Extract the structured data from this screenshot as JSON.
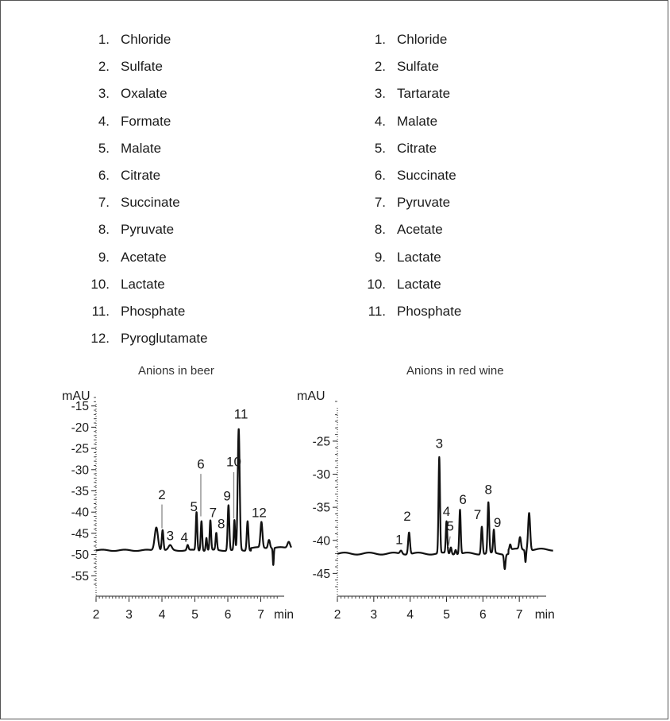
{
  "legend_beer": [
    {
      "num": "1.",
      "name": "Chloride"
    },
    {
      "num": "2.",
      "name": "Sulfate"
    },
    {
      "num": "3.",
      "name": "Oxalate"
    },
    {
      "num": "4.",
      "name": "Formate"
    },
    {
      "num": "5.",
      "name": "Malate"
    },
    {
      "num": "6.",
      "name": "Citrate"
    },
    {
      "num": "7.",
      "name": "Succinate"
    },
    {
      "num": "8.",
      "name": "Pyruvate"
    },
    {
      "num": "9.",
      "name": "Acetate"
    },
    {
      "num": "10.",
      "name": "Lactate"
    },
    {
      "num": "11.",
      "name": "Phosphate"
    },
    {
      "num": "12.",
      "name": "Pyroglutamate"
    }
  ],
  "legend_wine": [
    {
      "num": "1.",
      "name": "Chloride"
    },
    {
      "num": "2.",
      "name": "Sulfate"
    },
    {
      "num": "3.",
      "name": "Tartarate"
    },
    {
      "num": "4.",
      "name": "Malate"
    },
    {
      "num": "5.",
      "name": "Citrate"
    },
    {
      "num": "6.",
      "name": "Succinate"
    },
    {
      "num": "7.",
      "name": "Pyruvate"
    },
    {
      "num": "8.",
      "name": "Acetate"
    },
    {
      "num": "9.",
      "name": "Lactate"
    },
    {
      "num": "10.",
      "name": "Lactate"
    },
    {
      "num": "11.",
      "name": "Phosphate"
    }
  ],
  "chart_data": [
    {
      "type": "line",
      "title": "Anions in beer",
      "ylabel": "mAU",
      "xlabel": "min",
      "xlim": [
        2,
        8
      ],
      "ylim": [
        -57,
        -13
      ],
      "xticks": [
        2,
        3,
        4,
        5,
        6,
        7
      ],
      "yticks": [
        -55,
        -50,
        -45,
        -40,
        -35,
        -30,
        -25,
        -20,
        -15
      ],
      "baseline": -49,
      "peaks": [
        {
          "x": 3.83,
          "y": -43.5,
          "w": 0.05
        },
        {
          "x": 4.02,
          "y": -44.2,
          "w": 0.025
        },
        {
          "x": 4.25,
          "y": -47.9,
          "w": 0.05
        },
        {
          "x": 4.78,
          "y": -47.8,
          "w": 0.025
        },
        {
          "x": 5.05,
          "y": -40.0,
          "w": 0.022
        },
        {
          "x": 5.2,
          "y": -42.0,
          "w": 0.022
        },
        {
          "x": 5.35,
          "y": -46.0,
          "w": 0.02
        },
        {
          "x": 5.47,
          "y": -42.0,
          "w": 0.022
        },
        {
          "x": 5.65,
          "y": -45.0,
          "w": 0.022
        },
        {
          "x": 6.02,
          "y": -38.3,
          "w": 0.025
        },
        {
          "x": 6.2,
          "y": -42.0,
          "w": 0.02
        },
        {
          "x": 6.33,
          "y": -20.5,
          "w": 0.03
        },
        {
          "x": 6.6,
          "y": -42.0,
          "w": 0.025
        },
        {
          "x": 7.02,
          "y": -43.0,
          "w": 0.03
        },
        {
          "x": 7.25,
          "y": -47.0,
          "w": 0.03
        },
        {
          "x": 7.38,
          "y": -53.0,
          "w": 0.015
        },
        {
          "x": 7.85,
          "y": -47.5,
          "w": 0.04
        }
      ],
      "peak_labels": [
        {
          "label": "2",
          "x": 4.0,
          "y": -37.0,
          "leader": [
            [
              4.0,
              -38.2
            ],
            [
              4.0,
              -43.8
            ]
          ]
        },
        {
          "label": "3",
          "x": 4.25,
          "y": -46.6
        },
        {
          "label": "4",
          "x": 4.68,
          "y": -47.0
        },
        {
          "label": "5",
          "x": 4.97,
          "y": -39.8
        },
        {
          "label": "6",
          "x": 5.18,
          "y": -29.8,
          "leader": [
            [
              5.18,
              -31.0
            ],
            [
              5.18,
              -41.0
            ]
          ]
        },
        {
          "label": "7",
          "x": 5.55,
          "y": -41.2
        },
        {
          "label": "8",
          "x": 5.8,
          "y": -43.8
        },
        {
          "label": "9",
          "x": 5.98,
          "y": -37.2
        },
        {
          "label": "10",
          "x": 6.18,
          "y": -29.2,
          "leader": [
            [
              6.18,
              -30.6
            ],
            [
              6.18,
              -41.5
            ]
          ]
        },
        {
          "label": "11",
          "x": 6.4,
          "y": -18.0
        },
        {
          "label": "12",
          "x": 6.95,
          "y": -41.2
        }
      ]
    },
    {
      "type": "line",
      "title": "Anions in red wine",
      "ylabel": "mAU",
      "xlabel": "min",
      "xlim": [
        2,
        8
      ],
      "ylim": [
        -47,
        -19
      ],
      "xticks": [
        2,
        3,
        4,
        5,
        6,
        7
      ],
      "yticks": [
        -45,
        -40,
        -35,
        -30,
        -25
      ],
      "baseline": -42,
      "peaks": [
        {
          "x": 3.75,
          "y": -41.5,
          "w": 0.03
        },
        {
          "x": 3.97,
          "y": -38.7,
          "w": 0.025
        },
        {
          "x": 4.8,
          "y": -27.5,
          "w": 0.02
        },
        {
          "x": 5.0,
          "y": -37.2,
          "w": 0.02
        },
        {
          "x": 5.12,
          "y": -41.0,
          "w": 0.02
        },
        {
          "x": 5.25,
          "y": -41.3,
          "w": 0.02
        },
        {
          "x": 5.37,
          "y": -35.3,
          "w": 0.02
        },
        {
          "x": 5.97,
          "y": -37.8,
          "w": 0.022
        },
        {
          "x": 6.15,
          "y": -34.3,
          "w": 0.022
        },
        {
          "x": 6.3,
          "y": -38.5,
          "w": 0.02
        },
        {
          "x": 6.6,
          "y": -44.2,
          "w": 0.02
        },
        {
          "x": 6.75,
          "y": -41.2,
          "w": 0.02
        },
        {
          "x": 7.02,
          "y": -40.2,
          "w": 0.025
        },
        {
          "x": 7.17,
          "y": -43.8,
          "w": 0.015
        },
        {
          "x": 7.27,
          "y": -36.3,
          "w": 0.028
        }
      ],
      "peak_labels": [
        {
          "label": "1",
          "x": 3.7,
          "y": -40.6
        },
        {
          "label": "2",
          "x": 3.92,
          "y": -37.0
        },
        {
          "label": "3",
          "x": 4.8,
          "y": -26.0
        },
        {
          "label": "4",
          "x": 5.0,
          "y": -36.3
        },
        {
          "label": "5",
          "x": 5.1,
          "y": -38.5,
          "leader": [
            [
              5.1,
              -39.4
            ],
            [
              5.05,
              -41.0
            ]
          ]
        },
        {
          "label": "6",
          "x": 5.45,
          "y": -34.5
        },
        {
          "label": "7",
          "x": 5.85,
          "y": -36.8
        },
        {
          "label": "8",
          "x": 6.15,
          "y": -33.0
        },
        {
          "label": "9",
          "x": 6.4,
          "y": -38.0
        }
      ]
    }
  ]
}
